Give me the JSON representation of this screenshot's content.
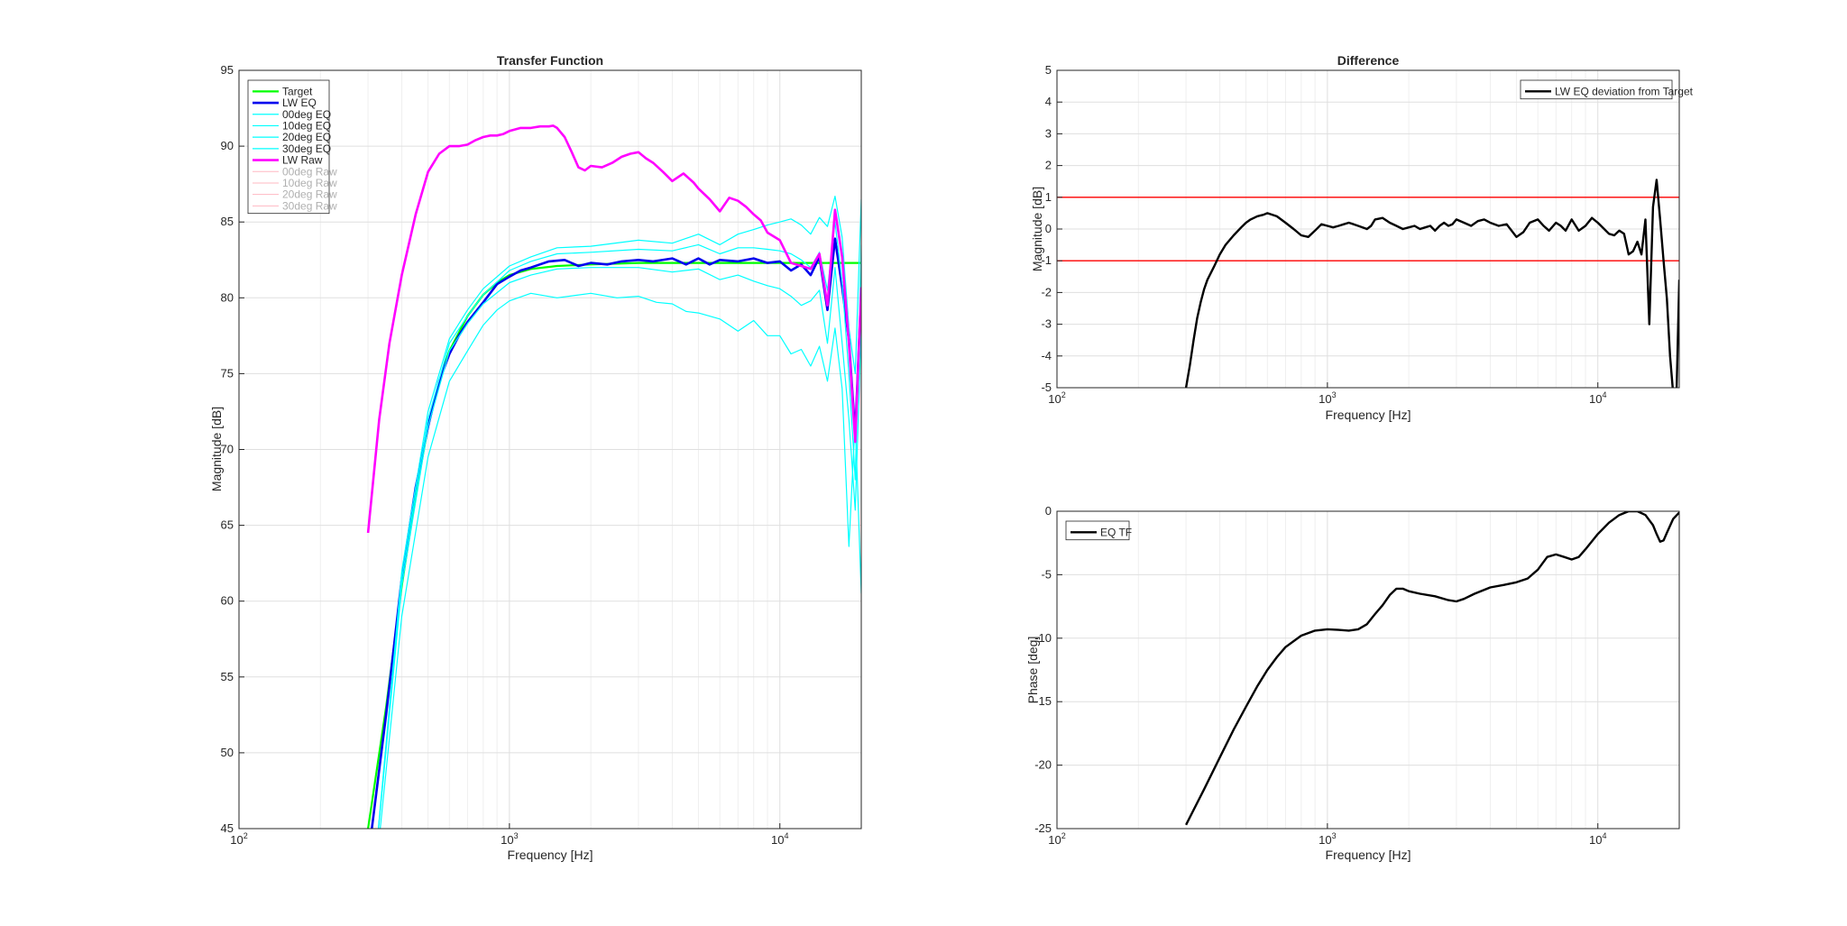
{
  "figure": {
    "background": "#ffffff"
  },
  "chart_data": [
    {
      "id": "transfer",
      "type": "line",
      "title": "Transfer Function",
      "xlabel": "Frequency [Hz]",
      "ylabel": "Magnitude [dB]",
      "xscale": "log",
      "xlim": [
        100,
        20000
      ],
      "ylim": [
        45,
        95
      ],
      "yticks": [
        45,
        50,
        55,
        60,
        65,
        70,
        75,
        80,
        85,
        90,
        95
      ],
      "xticks": [
        {
          "value": 100,
          "base": "10",
          "exp": "2"
        },
        {
          "value": 1000,
          "base": "10",
          "exp": "3"
        },
        {
          "value": 10000,
          "base": "10",
          "exp": "4"
        }
      ],
      "grid": true,
      "legend": {
        "position": "top-left"
      },
      "series": [
        {
          "name": "Target",
          "color": "#00ff00",
          "width": 2.2,
          "x": [
            300,
            350,
            400,
            450,
            500,
            550,
            600,
            700,
            800,
            900,
            1000,
            1200,
            1500,
            2000,
            3000,
            5000,
            10000,
            20000
          ],
          "y": [
            45,
            53,
            61,
            67,
            71.5,
            74.5,
            76.5,
            78.8,
            80.2,
            81,
            81.5,
            81.9,
            82.1,
            82.2,
            82.3,
            82.3,
            82.3,
            82.3
          ]
        },
        {
          "name": "LW EQ",
          "color": "#0000ee",
          "width": 2.6,
          "x": [
            300,
            350,
            400,
            450,
            500,
            550,
            600,
            650,
            700,
            800,
            900,
            1000,
            1100,
            1200,
            1400,
            1600,
            1800,
            2000,
            2300,
            2600,
            3000,
            3400,
            4000,
            4500,
            5000,
            5500,
            6000,
            7000,
            8000,
            9000,
            10000,
            11000,
            12000,
            13000,
            14000,
            15000,
            16000,
            17000,
            18000,
            19000,
            20000
          ],
          "y": [
            43,
            52.5,
            61.5,
            67.5,
            71.5,
            74.5,
            76.3,
            77.5,
            78.4,
            79.7,
            80.9,
            81.4,
            81.8,
            82.0,
            82.4,
            82.5,
            82.1,
            82.3,
            82.2,
            82.4,
            82.5,
            82.4,
            82.6,
            82.2,
            82.6,
            82.2,
            82.5,
            82.4,
            82.6,
            82.3,
            82.4,
            81.8,
            82.2,
            81.5,
            82.7,
            79.2,
            83.9,
            80.7,
            77.2,
            71.0,
            80.6
          ]
        },
        {
          "name": "00deg EQ",
          "color": "#00ffff",
          "width": 1.2,
          "x": [
            320,
            400,
            500,
            600,
            700,
            800,
            1000,
            1200,
            1500,
            2000,
            3000,
            4000,
            5000,
            6000,
            7000,
            8000,
            9000,
            10000,
            11000,
            12000,
            13000,
            14000,
            15000,
            16000,
            17000,
            18000,
            19000,
            20000
          ],
          "y": [
            43,
            62,
            72.5,
            77.3,
            79.2,
            80.6,
            82.1,
            82.7,
            83.3,
            83.4,
            83.8,
            83.6,
            84.2,
            83.5,
            84.2,
            84.5,
            84.8,
            85,
            85.2,
            84.8,
            84.2,
            85.3,
            84.7,
            86.7,
            84,
            78,
            75,
            86.5
          ]
        },
        {
          "name": "10deg EQ",
          "color": "#00ffff",
          "width": 1.2,
          "x": [
            320,
            400,
            500,
            600,
            700,
            800,
            1000,
            1200,
            1500,
            2000,
            3000,
            4000,
            5000,
            6000,
            7000,
            8000,
            9000,
            10000,
            11000,
            12000,
            13000,
            14000,
            15000,
            16000,
            17000,
            18000,
            19000,
            20000
          ],
          "y": [
            43,
            61.5,
            72,
            77,
            78.8,
            80.2,
            81.8,
            82.4,
            82.9,
            83,
            83.2,
            83.1,
            83.5,
            82.9,
            83.3,
            83.3,
            83.2,
            83.1,
            82.9,
            82.5,
            82,
            83,
            80.5,
            85,
            81,
            75,
            68,
            83.5
          ]
        },
        {
          "name": "20deg EQ",
          "color": "#00ffff",
          "width": 1.2,
          "x": [
            320,
            400,
            500,
            600,
            700,
            800,
            1000,
            1200,
            1500,
            2000,
            3000,
            4000,
            5000,
            6000,
            7000,
            8000,
            9000,
            10000,
            11000,
            12000,
            13000,
            14000,
            15000,
            16000,
            17000,
            18000,
            19000,
            20000
          ],
          "y": [
            43,
            61,
            71.5,
            76.5,
            78.3,
            79.6,
            81,
            81.5,
            81.9,
            82,
            82,
            81.7,
            81.9,
            81.2,
            81.5,
            81.1,
            80.8,
            80.6,
            80.1,
            79.5,
            79.8,
            80.5,
            77,
            82,
            77,
            72,
            66,
            78
          ]
        },
        {
          "name": "30deg EQ",
          "color": "#00ffff",
          "width": 1.2,
          "x": [
            320,
            400,
            500,
            600,
            700,
            800,
            900,
            1000,
            1200,
            1500,
            2000,
            2500,
            3000,
            3500,
            4000,
            4500,
            5000,
            6000,
            7000,
            8000,
            9000,
            10000,
            11000,
            12000,
            13000,
            14000,
            15000,
            16000,
            17000,
            18000,
            19000,
            20000
          ],
          "y": [
            42,
            59,
            69.5,
            74.5,
            76.5,
            78.2,
            79.2,
            79.8,
            80.3,
            80,
            80.3,
            80,
            80.1,
            79.7,
            79.6,
            79.1,
            79,
            78.6,
            77.8,
            78.5,
            77.5,
            77.5,
            76.3,
            76.6,
            75.5,
            76.8,
            74.5,
            78,
            74,
            63.6,
            72,
            60.5
          ]
        },
        {
          "name": "LW Raw",
          "color": "#ff00ff",
          "width": 2.6,
          "x": [
            300,
            330,
            360,
            400,
            450,
            500,
            550,
            600,
            650,
            700,
            750,
            800,
            850,
            900,
            950,
            1000,
            1100,
            1200,
            1300,
            1400,
            1450,
            1500,
            1600,
            1700,
            1800,
            1900,
            2000,
            2200,
            2400,
            2600,
            2800,
            3000,
            3200,
            3400,
            3700,
            4000,
            4400,
            4800,
            5000,
            5500,
            6000,
            6500,
            7000,
            7500,
            8000,
            8500,
            9000,
            10000,
            11000,
            12000,
            13000,
            14000,
            15000,
            16000,
            17000,
            18000,
            19000,
            20000
          ],
          "y": [
            64.5,
            72,
            77,
            81.5,
            85.5,
            88.3,
            89.5,
            90,
            90,
            90.1,
            90.4,
            90.6,
            90.7,
            90.7,
            90.8,
            91,
            91.2,
            91.2,
            91.3,
            91.3,
            91.35,
            91.2,
            90.6,
            89.6,
            88.6,
            88.4,
            88.7,
            88.6,
            88.9,
            89.3,
            89.5,
            89.6,
            89.2,
            88.9,
            88.3,
            87.7,
            88.2,
            87.6,
            87.2,
            86.5,
            85.7,
            86.6,
            86.4,
            86,
            85.5,
            85.1,
            84.3,
            83.8,
            82.3,
            82.1,
            81.9,
            82.9,
            79.5,
            85.8,
            82.7,
            77,
            70.5,
            80.7
          ]
        },
        {
          "name": "00deg Raw",
          "color": "#ffb8c2",
          "width": 1,
          "visible": false,
          "x": [],
          "y": []
        },
        {
          "name": "10deg Raw",
          "color": "#ffb8c2",
          "width": 1,
          "visible": false,
          "x": [],
          "y": []
        },
        {
          "name": "20deg Raw",
          "color": "#ffb8c2",
          "width": 1,
          "visible": false,
          "x": [],
          "y": []
        },
        {
          "name": "30deg Raw",
          "color": "#ffb8c2",
          "width": 1,
          "visible": false,
          "x": [],
          "y": []
        }
      ]
    },
    {
      "id": "difference",
      "type": "line",
      "title": "Difference",
      "xlabel": "Frequency [Hz]",
      "ylabel": "Magnitude [dB]",
      "xscale": "log",
      "xlim": [
        100,
        20000
      ],
      "ylim": [
        -5,
        5
      ],
      "yticks": [
        -5,
        -4,
        -3,
        -2,
        -1,
        0,
        1,
        2,
        3,
        4,
        5
      ],
      "xticks": [
        {
          "value": 100,
          "base": "10",
          "exp": "2"
        },
        {
          "value": 1000,
          "base": "10",
          "exp": "3"
        },
        {
          "value": 10000,
          "base": "10",
          "exp": "4"
        }
      ],
      "grid": true,
      "legend": {
        "position": "top-right"
      },
      "hlines": [
        {
          "y": 1,
          "color": "#ff0000"
        },
        {
          "y": -1,
          "color": "#ff0000"
        }
      ],
      "series": [
        {
          "name": "LW EQ deviation from Target",
          "color": "#000000",
          "width": 2.4,
          "x": [
            300,
            310,
            320,
            330,
            340,
            350,
            360,
            380,
            400,
            420,
            450,
            480,
            500,
            520,
            550,
            580,
            600,
            650,
            700,
            750,
            800,
            850,
            900,
            950,
            1000,
            1050,
            1100,
            1150,
            1200,
            1250,
            1300,
            1350,
            1400,
            1450,
            1500,
            1600,
            1700,
            1800,
            1900,
            2000,
            2100,
            2200,
            2300,
            2400,
            2500,
            2600,
            2700,
            2800,
            2900,
            3000,
            3200,
            3400,
            3600,
            3800,
            4000,
            4300,
            4600,
            5000,
            5300,
            5600,
            6000,
            6300,
            6600,
            7000,
            7300,
            7600,
            8000,
            8500,
            9000,
            9500,
            10000,
            11000,
            11500,
            12000,
            12500,
            13000,
            13500,
            14000,
            14500,
            15000,
            15500,
            16000,
            16500,
            17000,
            17500,
            18000,
            18500,
            19000,
            19500,
            20000
          ],
          "y": [
            -5,
            -4.3,
            -3.5,
            -2.8,
            -2.3,
            -1.9,
            -1.6,
            -1.2,
            -0.8,
            -0.5,
            -0.2,
            0.05,
            0.2,
            0.3,
            0.4,
            0.45,
            0.5,
            0.4,
            0.2,
            0.0,
            -0.2,
            -0.25,
            -0.05,
            0.15,
            0.1,
            0.05,
            0.1,
            0.15,
            0.2,
            0.15,
            0.1,
            0.05,
            0.0,
            0.1,
            0.3,
            0.35,
            0.2,
            0.1,
            0.0,
            0.05,
            0.1,
            0.0,
            0.05,
            0.1,
            -0.05,
            0.1,
            0.2,
            0.1,
            0.15,
            0.3,
            0.2,
            0.1,
            0.25,
            0.3,
            0.2,
            0.1,
            0.15,
            -0.25,
            -0.1,
            0.2,
            0.3,
            0.1,
            -0.05,
            0.2,
            0.1,
            -0.05,
            0.3,
            -0.05,
            0.1,
            0.35,
            0.2,
            -0.15,
            -0.2,
            -0.05,
            -0.15,
            -0.8,
            -0.7,
            -0.4,
            -0.8,
            0.3,
            -3.0,
            0.7,
            1.55,
            0.3,
            -1.0,
            -2.2,
            -4.0,
            -5.2,
            -5.5,
            -1.6
          ]
        }
      ]
    },
    {
      "id": "phase",
      "type": "line",
      "title": "",
      "xlabel": "Frequency [Hz]",
      "ylabel": "Phase [deg]",
      "xscale": "log",
      "xlim": [
        100,
        20000
      ],
      "ylim": [
        -25,
        0
      ],
      "yticks": [
        -25,
        -20,
        -15,
        -10,
        -5,
        0
      ],
      "xticks": [
        {
          "value": 100,
          "base": "10",
          "exp": "2"
        },
        {
          "value": 1000,
          "base": "10",
          "exp": "3"
        },
        {
          "value": 10000,
          "base": "10",
          "exp": "4"
        }
      ],
      "grid": true,
      "legend": {
        "position": "top-left"
      },
      "series": [
        {
          "name": "EQ TF",
          "color": "#000000",
          "width": 2.4,
          "x": [
            300,
            350,
            400,
            450,
            500,
            550,
            600,
            650,
            700,
            800,
            900,
            1000,
            1100,
            1200,
            1300,
            1400,
            1500,
            1600,
            1700,
            1800,
            1900,
            2000,
            2200,
            2500,
            2800,
            3000,
            3200,
            3500,
            4000,
            4500,
            5000,
            5500,
            6000,
            6500,
            7000,
            7500,
            8000,
            8500,
            9000,
            10000,
            11000,
            12000,
            13000,
            14000,
            15000,
            16000,
            16500,
            17000,
            17500,
            18000,
            19000,
            20000
          ],
          "y": [
            -24.7,
            -21.9,
            -19.4,
            -17.2,
            -15.4,
            -13.8,
            -12.5,
            -11.5,
            -10.7,
            -9.8,
            -9.4,
            -9.3,
            -9.35,
            -9.4,
            -9.3,
            -8.9,
            -8.1,
            -7.4,
            -6.6,
            -6.1,
            -6.1,
            -6.3,
            -6.5,
            -6.7,
            -7.0,
            -7.1,
            -6.9,
            -6.5,
            -6.0,
            -5.8,
            -5.6,
            -5.3,
            -4.6,
            -3.6,
            -3.4,
            -3.6,
            -3.8,
            -3.6,
            -3.0,
            -1.8,
            -0.9,
            -0.3,
            0.0,
            0.0,
            -0.3,
            -1.1,
            -1.8,
            -2.4,
            -2.3,
            -1.7,
            -0.6,
            -0.1
          ]
        }
      ]
    }
  ]
}
